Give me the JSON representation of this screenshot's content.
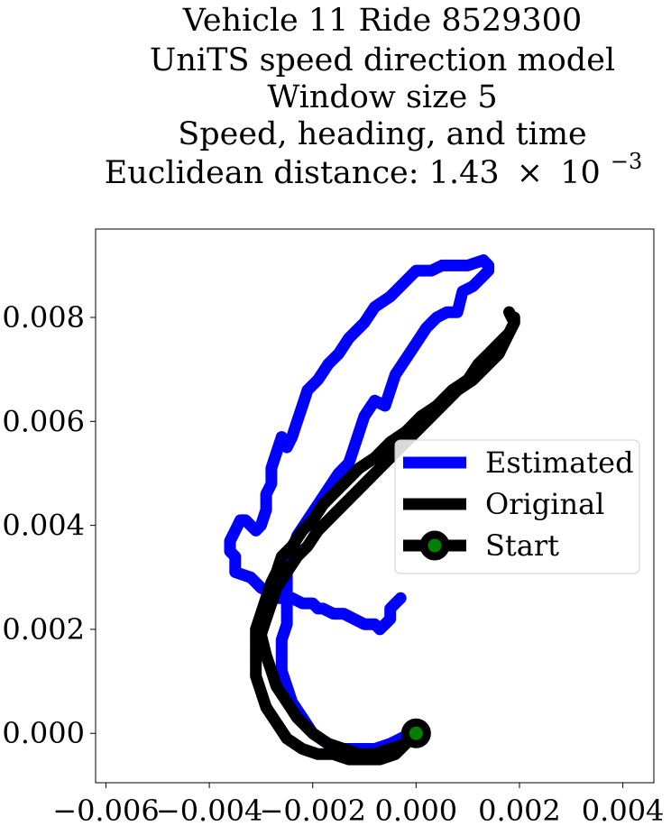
{
  "chart_data": {
    "type": "line",
    "title_lines": [
      "Vehicle 11 Ride 8529300",
      "UniTS speed direction model",
      "Window size 5",
      "Speed, heading, and time"
    ],
    "title_distance_prefix": "Euclidean distance: 1.43",
    "title_distance_times": "×",
    "title_distance_base": "10",
    "title_distance_exponent": "−3",
    "xlabel": "",
    "ylabel": "",
    "xlim": [
      -0.0062,
      0.0046
    ],
    "ylim": [
      -0.00095,
      0.0097
    ],
    "x_ticks": [
      -0.006,
      -0.004,
      -0.002,
      0.0,
      0.002,
      0.004
    ],
    "x_tick_labels": [
      "−0.006",
      "−0.004",
      "−0.002",
      "0.000",
      "0.002",
      "0.004"
    ],
    "y_ticks": [
      0.0,
      0.002,
      0.004,
      0.006,
      0.008
    ],
    "y_tick_labels": [
      "0.000",
      "0.002",
      "0.004",
      "0.006",
      "0.008"
    ],
    "grid": false,
    "legend_placement": "center-right",
    "colors": {
      "estimated": "#0000ff",
      "original": "#000000",
      "start_marker_fill": "#008000",
      "start_marker_edge": "#000000"
    },
    "series": [
      {
        "name": "Estimated",
        "color": "#0000ff",
        "x": [
          -0.0003,
          -0.0004,
          -0.0005,
          -0.0005,
          -0.0006,
          -0.0007,
          -0.0008,
          -0.0009,
          -0.001,
          -0.0012,
          -0.0014,
          -0.0016,
          -0.0018,
          -0.0019,
          -0.002,
          -0.0022,
          -0.0024,
          -0.0026,
          -0.0027,
          -0.0028,
          -0.003,
          -0.0031,
          -0.0032,
          -0.0035,
          -0.0035,
          -0.0035,
          -0.0036,
          -0.0036,
          -0.0035,
          -0.0034,
          -0.0033,
          -0.0032,
          -0.0031,
          -0.003,
          -0.0029,
          -0.0029,
          -0.0028,
          -0.0028,
          -0.0027,
          -0.0026,
          -0.0025,
          -0.0024,
          -0.0023,
          -0.0022,
          -0.0021,
          -0.0019,
          -0.0017,
          -0.0015,
          -0.0013,
          -0.001,
          -0.0008,
          -0.0005,
          -0.0003,
          0.0,
          0.0003,
          0.0005,
          0.0008,
          0.001,
          0.0013,
          0.0014,
          0.0014,
          0.0013,
          0.0012,
          0.0011,
          0.0009,
          0.0008,
          0.0006,
          0.0004,
          0.0002,
          0.0,
          -0.0002,
          -0.0004,
          -0.0005,
          -0.0006,
          -0.0008,
          -0.001,
          -0.0011,
          -0.0012,
          -0.0013,
          -0.0015,
          -0.0017,
          -0.0019,
          -0.0021,
          -0.0023,
          -0.0024,
          -0.0025,
          -0.0025,
          -0.0025,
          -0.0025,
          -0.0025,
          -0.0026,
          -0.0026,
          -0.0026,
          -0.0025,
          -0.0024,
          -0.0022,
          -0.002,
          -0.0017,
          -0.0014,
          -0.0011,
          -0.0008,
          -0.0005,
          -0.0003,
          -0.0001,
          0.0
        ],
        "y": [
          0.0026,
          0.0025,
          0.0024,
          0.0022,
          0.0021,
          0.002,
          0.0021,
          0.0021,
          0.0021,
          0.0022,
          0.0023,
          0.0023,
          0.0024,
          0.0024,
          0.0025,
          0.0025,
          0.0026,
          0.0026,
          0.0026,
          0.0027,
          0.0028,
          0.0029,
          0.003,
          0.0031,
          0.0032,
          0.0034,
          0.0035,
          0.0037,
          0.0039,
          0.0041,
          0.0041,
          0.004,
          0.0039,
          0.004,
          0.0043,
          0.0046,
          0.0048,
          0.0051,
          0.0054,
          0.0057,
          0.0055,
          0.0057,
          0.006,
          0.0063,
          0.0066,
          0.0068,
          0.0071,
          0.0073,
          0.0076,
          0.0079,
          0.0082,
          0.0084,
          0.0086,
          0.0089,
          0.0089,
          0.009,
          0.009,
          0.009,
          0.0091,
          0.009,
          0.0089,
          0.0088,
          0.0087,
          0.0086,
          0.0085,
          0.0081,
          0.0081,
          0.008,
          0.0078,
          0.0075,
          0.0072,
          0.0069,
          0.0066,
          0.0063,
          0.0064,
          0.0061,
          0.0058,
          0.0055,
          0.0052,
          0.005,
          0.0047,
          0.0044,
          0.0041,
          0.0038,
          0.0035,
          0.0033,
          0.003,
          0.0027,
          0.0024,
          0.0021,
          0.0018,
          0.0015,
          0.0012,
          0.0009,
          0.0006,
          0.0003,
          0.0,
          -0.0002,
          -0.0003,
          -0.0003,
          -0.0003,
          -0.0002,
          -0.0001,
          0.0,
          0.0
        ]
      },
      {
        "name": "Original",
        "color": "#000000",
        "x": [
          0.0018,
          0.0019,
          0.0018,
          0.0016,
          0.0014,
          0.0012,
          0.001,
          0.0007,
          0.0004,
          0.0001,
          -0.0002,
          -0.0005,
          -0.0008,
          -0.0011,
          -0.0014,
          -0.0016,
          -0.0018,
          -0.002,
          -0.0022,
          -0.0024,
          -0.0026,
          -0.0027,
          -0.0028,
          -0.0029,
          -0.003,
          -0.0031,
          -0.0031,
          -0.0031,
          -0.0031,
          -0.003,
          -0.0029,
          -0.0027,
          -0.0025,
          -0.0022,
          -0.0019,
          -0.0016,
          -0.0013,
          -0.001,
          -0.0007,
          -0.0004,
          -0.0002,
          0.0,
          0.0,
          -0.0002,
          -0.0005,
          -0.0008,
          -0.0011,
          -0.0014,
          -0.0017,
          -0.002,
          -0.0023,
          -0.0025,
          -0.0027,
          -0.0028,
          -0.0029,
          -0.003,
          -0.0029,
          -0.0028,
          -0.0027,
          -0.0025,
          -0.0023,
          -0.0021,
          -0.0019,
          -0.0016,
          -0.0013,
          -0.001,
          -0.0007,
          -0.0004,
          -0.0001,
          0.0002,
          0.0005,
          0.0008,
          0.0011,
          0.0014,
          0.0016,
          0.0017,
          0.0018,
          0.0019,
          0.0019
        ],
        "y": [
          0.0081,
          0.0079,
          0.0077,
          0.0075,
          0.0073,
          0.0071,
          0.0068,
          0.0066,
          0.0063,
          0.0061,
          0.0058,
          0.0056,
          0.0053,
          0.0051,
          0.0048,
          0.0046,
          0.0044,
          0.0041,
          0.0039,
          0.0036,
          0.0034,
          0.0031,
          0.0029,
          0.0026,
          0.0023,
          0.002,
          0.0017,
          0.0014,
          0.0011,
          0.0008,
          0.0005,
          0.0002,
          -0.0001,
          -0.0003,
          -0.0004,
          -0.0004,
          -0.0005,
          -0.0005,
          -0.0005,
          -0.0004,
          -0.0002,
          0.0,
          0.0,
          -0.0002,
          -0.0003,
          -0.0004,
          -0.0004,
          -0.0003,
          -0.0002,
          0.0,
          0.0003,
          0.0006,
          0.0009,
          0.0012,
          0.0015,
          0.0019,
          0.0022,
          0.0025,
          0.0028,
          0.0031,
          0.0034,
          0.0036,
          0.0039,
          0.0042,
          0.0045,
          0.0048,
          0.0051,
          0.0054,
          0.0057,
          0.006,
          0.0063,
          0.0066,
          0.0068,
          0.0071,
          0.0073,
          0.0075,
          0.0077,
          0.0079,
          0.008
        ]
      }
    ],
    "start_point": {
      "name": "Start",
      "x": 0.0,
      "y": 0.0
    },
    "legend": [
      {
        "label": "Estimated",
        "kind": "line",
        "color": "#0000ff"
      },
      {
        "label": "Original",
        "kind": "line",
        "color": "#000000"
      },
      {
        "label": "Start",
        "kind": "marker",
        "color": "#000000",
        "marker_fill": "#008000"
      }
    ]
  }
}
